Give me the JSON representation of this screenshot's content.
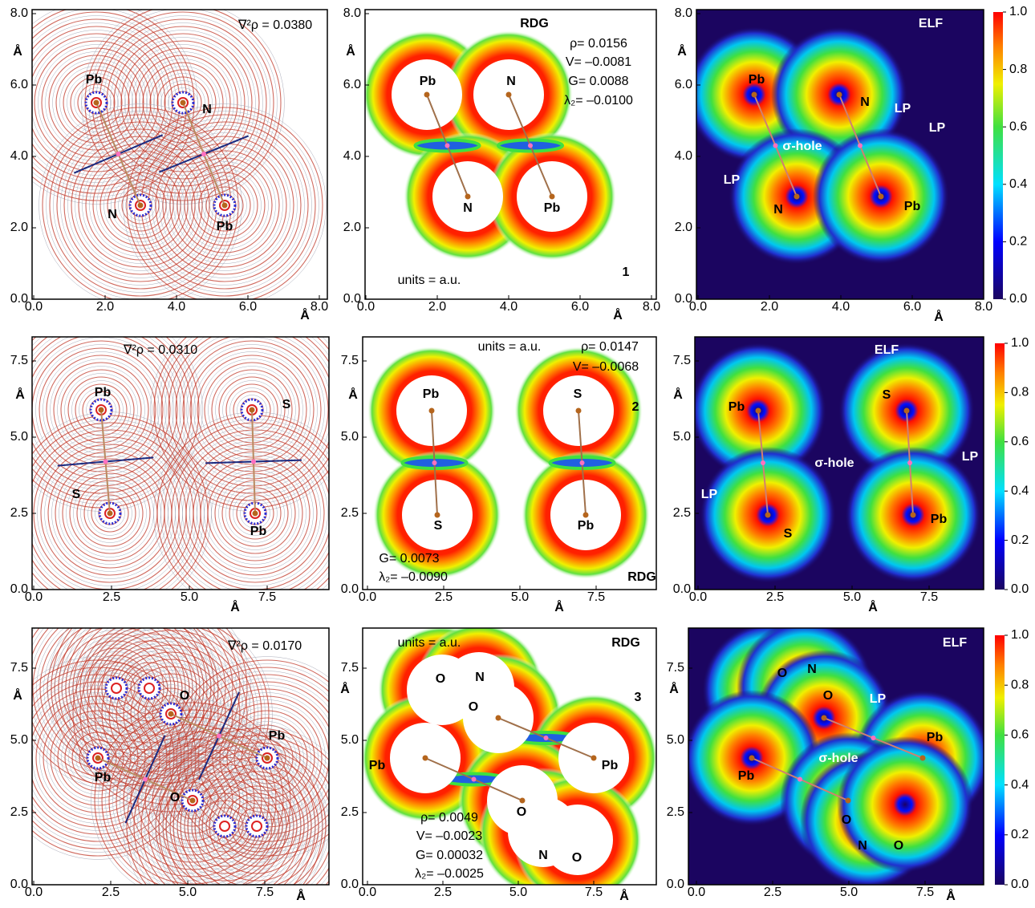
{
  "rows": [
    {
      "contour": {
        "note": "∇²ρ = 0.0380",
        "yticks": [
          "0.0",
          "2.0",
          "4.0",
          "6.0",
          "8.0"
        ],
        "xticks": [
          "0.0",
          "2.0",
          "4.0",
          "6.0",
          "8.0"
        ],
        "ylabel": "Å",
        "xlabel": "Å",
        "atoms": [
          "Pb",
          "N",
          "N",
          "Pb"
        ]
      },
      "rdg": {
        "title": "RDG",
        "units": "units = a.u.",
        "number": "1",
        "params": [
          "ρ= 0.0156",
          "V= –0.0081",
          "G= 0.0088",
          "λ₂= –0.0100"
        ],
        "yticks": [
          "0.0",
          "2.0",
          "4.0",
          "6.0",
          "8.0"
        ],
        "xticks": [
          "0.0",
          "2.0",
          "4.0",
          "6.0",
          "8.0"
        ],
        "ylabel": "Å",
        "xlabel": "Å",
        "atoms": [
          "Pb",
          "N",
          "N",
          "Pb"
        ]
      },
      "elf": {
        "title": "ELF",
        "annotations": [
          "LP",
          "LP",
          "σ-hole",
          "LP"
        ],
        "yticks": [
          "0.0",
          "2.0",
          "4.0",
          "6.0",
          "8.0"
        ],
        "xticks": [
          "0.0",
          "2.0",
          "4.0",
          "6.0",
          "8.0"
        ],
        "ylabel": "Å",
        "xlabel": "Å",
        "atoms": [
          "Pb",
          "N",
          "N",
          "Pb"
        ]
      },
      "colorbar": [
        "0.0",
        "0.2",
        "0.4",
        "0.6",
        "0.8",
        "1.0"
      ]
    },
    {
      "contour": {
        "note": "∇²ρ = 0.0310",
        "yticks": [
          "0.0",
          "2.5",
          "5.0",
          "7.5"
        ],
        "xticks": [
          "0.0",
          "2.5",
          "5.0",
          "7.5"
        ],
        "ylabel": "Å",
        "xlabel": "Å",
        "atoms": [
          "Pb",
          "S",
          "S",
          "Pb"
        ]
      },
      "rdg": {
        "title": "RDG",
        "units": "units = a.u.",
        "number": "2",
        "params": [
          "ρ= 0.0147",
          "V= –0.0068",
          "G= 0.0073",
          "λ₂= –0.0090"
        ],
        "yticks": [
          "0.0",
          "2.5",
          "5.0",
          "7.5"
        ],
        "xticks": [
          "0.0",
          "2.5",
          "5.0",
          "7.5"
        ],
        "ylabel": "Å",
        "xlabel": "Å",
        "atoms": [
          "Pb",
          "S",
          "S",
          "Pb"
        ]
      },
      "elf": {
        "title": "ELF",
        "annotations": [
          "LP",
          "σ-hole",
          "LP"
        ],
        "yticks": [
          "0.0",
          "2.5",
          "5.0",
          "7.5"
        ],
        "xticks": [
          "0.0",
          "2.5",
          "5.0",
          "7.5"
        ],
        "ylabel": "Å",
        "xlabel": "Å",
        "atoms": [
          "Pb",
          "S",
          "S",
          "Pb"
        ]
      },
      "colorbar": [
        "0.0",
        "0.2",
        "0.4",
        "0.6",
        "0.8",
        "1.0"
      ]
    },
    {
      "contour": {
        "note": "∇²ρ = 0.0170",
        "yticks": [
          "0.0",
          "2.5",
          "5.0",
          "7.5"
        ],
        "xticks": [
          "0.0",
          "2.5",
          "5.0",
          "7.5"
        ],
        "ylabel": "Å",
        "xlabel": "Å",
        "atoms": [
          "O",
          "Pb",
          "Pb",
          "O"
        ]
      },
      "rdg": {
        "title": "RDG",
        "units": "units = a.u.",
        "number": "3",
        "params": [
          "ρ= 0.0049",
          "V= –0.0023",
          "G= 0.00032",
          "λ₂= –0.0025"
        ],
        "yticks": [
          "0.0",
          "2.5",
          "5.0",
          "7.5"
        ],
        "xticks": [
          "0.0",
          "2.5",
          "5.0",
          "7.5"
        ],
        "ylabel": "Å",
        "xlabel": "Å",
        "atoms": [
          "O",
          "N",
          "O",
          "Pb",
          "Pb",
          "O",
          "N",
          "O"
        ]
      },
      "elf": {
        "title": "ELF",
        "annotations": [
          "LP",
          "σ-hole"
        ],
        "yticks": [
          "0.0",
          "2.5",
          "5.0",
          "7.5"
        ],
        "xticks": [
          "0.0",
          "2.5",
          "5.0",
          "7.5"
        ],
        "ylabel": "Å",
        "xlabel": "Å",
        "atoms": [
          "O",
          "N",
          "O",
          "Pb",
          "Pb",
          "O",
          "N",
          "O"
        ]
      },
      "colorbar": [
        "0.0",
        "0.2",
        "0.4",
        "0.6",
        "0.8",
        "1.0"
      ]
    }
  ]
}
